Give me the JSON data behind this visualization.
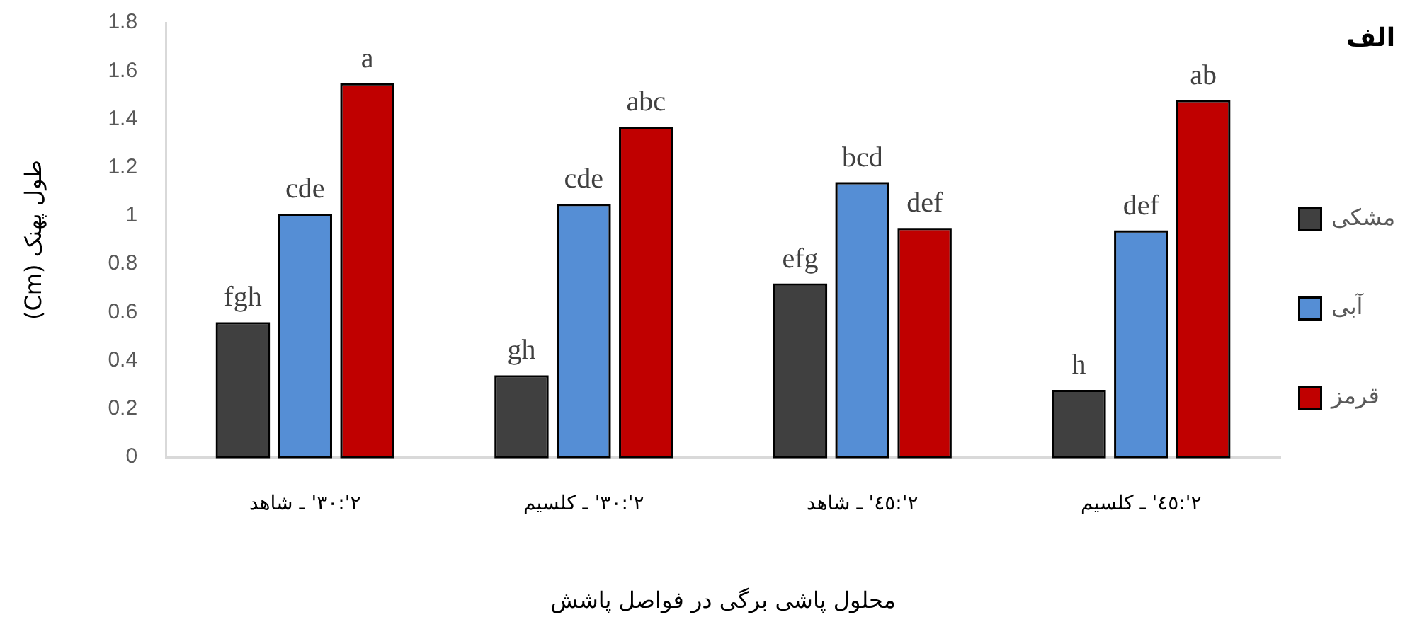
{
  "chart_data": {
    "type": "bar",
    "title": "الف",
    "xlabel": "محلول پاشی برگی در فواصل پاشش",
    "ylabel": "طول پهنک (Cm)",
    "categories": [
      "٢':٣٠' ـ شاهد",
      "٢':٣٠' ـ کلسیم",
      "٢':٤٥' ـ شاهد",
      "٢':٤٥' ـ کلسیم"
    ],
    "series": [
      {
        "name": "مشکی",
        "color": "#404040",
        "values": [
          0.55,
          0.33,
          0.71,
          0.27
        ],
        "value_labels": [
          "fgh",
          "gh",
          "efg",
          "h"
        ]
      },
      {
        "name": "آبی",
        "color": "#558ed5",
        "values": [
          1.0,
          1.04,
          1.13,
          0.93
        ],
        "value_labels": [
          "cde",
          "cde",
          "bcd",
          "def"
        ]
      },
      {
        "name": "قرمز",
        "color": "#c00000",
        "values": [
          1.54,
          1.36,
          0.94,
          1.47
        ],
        "value_labels": [
          "a",
          "abc",
          "def",
          "ab"
        ]
      }
    ],
    "ylim": [
      0,
      1.8
    ],
    "yticks": [
      0,
      0.2,
      0.4,
      0.6,
      0.8,
      1,
      1.2,
      1.4,
      1.6,
      1.8
    ],
    "legend": "right",
    "grid": false
  }
}
